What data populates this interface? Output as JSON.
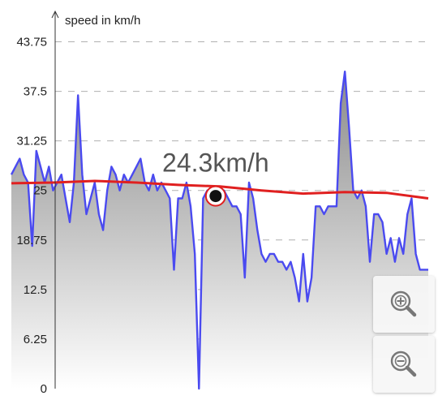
{
  "colors": {
    "speed_line": "#4a4af0",
    "average_line": "#e02020",
    "fill_top": "#8a8a8a",
    "fill_bottom": "#ffffff",
    "grid": "#b0b0b0",
    "marker": "#111111",
    "marker_ring": "#e02020"
  },
  "icons": {
    "zoom_in": "zoom-in-icon",
    "zoom_out": "zoom-out-icon"
  },
  "chart_data": {
    "type": "area",
    "ylabel": "speed in km/h",
    "ylim": [
      0,
      48
    ],
    "yticks": [
      {
        "value": 0,
        "label": "0"
      },
      {
        "value": 6.25,
        "label": "6.25"
      },
      {
        "value": 12.5,
        "label": "12.5"
      },
      {
        "value": 18.75,
        "label": "18.75"
      },
      {
        "value": 25,
        "label": "25"
      },
      {
        "value": 31.25,
        "label": "31.25"
      },
      {
        "value": 37.5,
        "label": "37.5"
      },
      {
        "value": 43.75,
        "label": "43.75"
      }
    ],
    "grid": true,
    "xlim": [
      0,
      100
    ],
    "series": [
      {
        "x": [
          0,
          1,
          2,
          3,
          4,
          5,
          6,
          7,
          8,
          9,
          10,
          11,
          12,
          13,
          14,
          15,
          16,
          17,
          18,
          19,
          20,
          21,
          22,
          23,
          24,
          25,
          26,
          27,
          28,
          29,
          30,
          31,
          32,
          33,
          34,
          35,
          36,
          37,
          38,
          39,
          40,
          41,
          42,
          43,
          44,
          45,
          46,
          47,
          48,
          49,
          50,
          51,
          52,
          53,
          54,
          55,
          56,
          57,
          58,
          59,
          60,
          61,
          62,
          63,
          64,
          65,
          66,
          67,
          68,
          69,
          70,
          71,
          72,
          73,
          74,
          75,
          76,
          77,
          78,
          79,
          80,
          81,
          82,
          83,
          84,
          85,
          86,
          87,
          88,
          89,
          90,
          91,
          92,
          93,
          94,
          95,
          96,
          97,
          98,
          99,
          100
        ],
        "values": [
          27,
          28,
          29,
          27,
          26,
          18,
          30,
          28,
          26,
          28,
          25,
          26,
          27,
          24,
          21,
          26,
          37,
          27,
          22,
          24,
          26,
          22,
          20,
          25,
          28,
          27,
          25,
          27,
          26,
          27,
          28,
          29,
          26,
          25,
          27,
          25,
          26,
          25,
          24,
          15,
          24,
          24,
          26,
          23,
          17,
          0,
          24,
          25,
          25,
          24,
          24,
          25,
          24,
          23,
          23,
          22,
          14,
          26,
          24,
          20,
          17,
          16,
          17,
          17,
          16,
          16,
          15,
          16,
          14,
          11,
          17,
          11,
          14,
          23,
          23,
          22,
          23,
          23,
          23,
          36,
          40,
          33,
          25,
          24,
          25,
          23,
          16,
          22,
          22,
          21,
          17,
          19,
          16,
          19,
          17,
          22,
          24,
          17,
          15,
          15,
          15
        ]
      },
      {
        "x": [
          0,
          10,
          20,
          30,
          40,
          50,
          60,
          70,
          80,
          90,
          100
        ],
        "values": [
          25.9,
          26.0,
          26.2,
          26.0,
          25.7,
          25.5,
          25.0,
          24.6,
          24.8,
          24.7,
          24.0
        ]
      }
    ],
    "marker": {
      "x": 49,
      "y": 24.3,
      "label": "24.3km/h"
    }
  }
}
